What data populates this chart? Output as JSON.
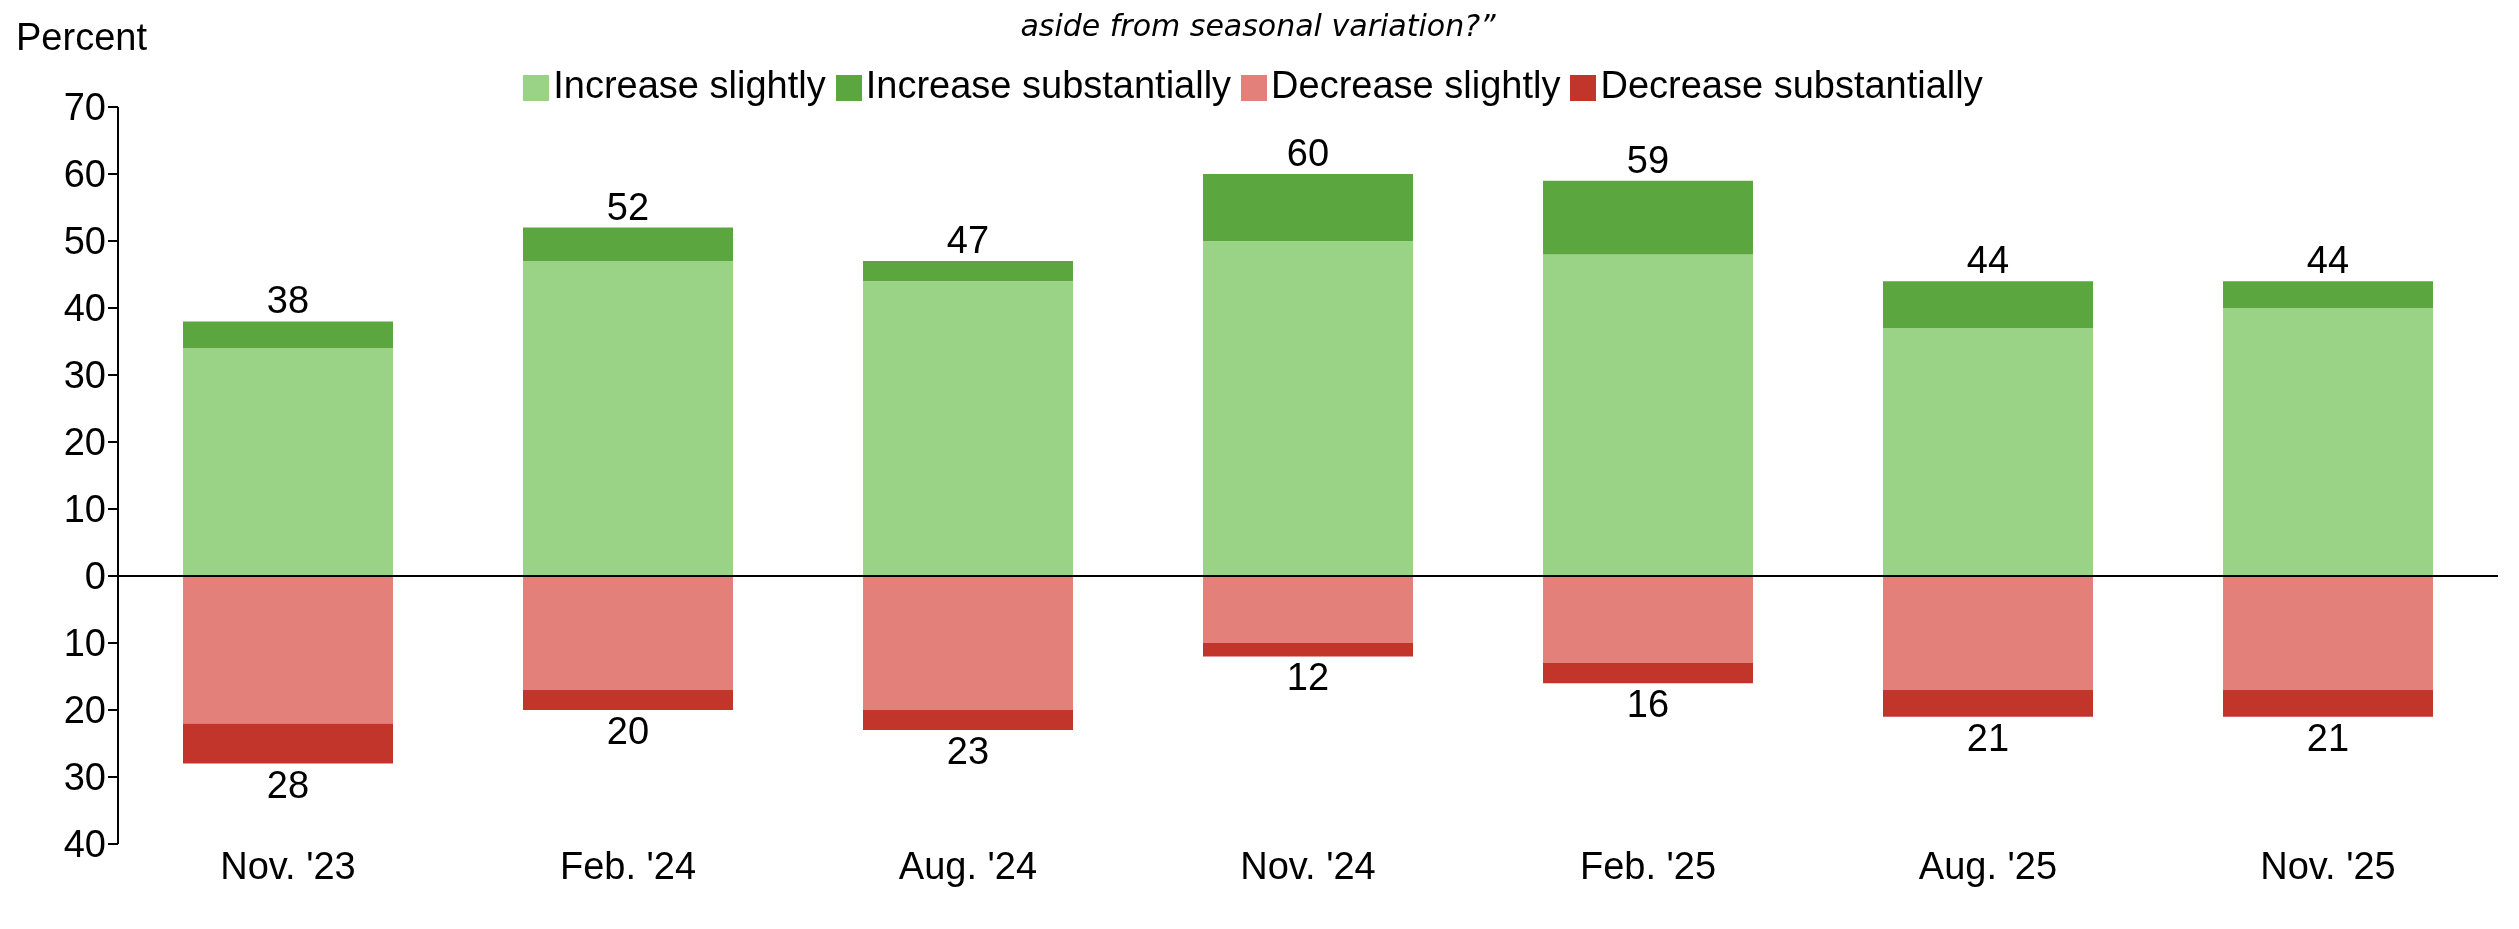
{
  "chart_data": {
    "type": "bar",
    "title": "aside from seasonal variation?”",
    "ylabel": "Percent",
    "stacked": true,
    "legend": "top",
    "categories": [
      "Nov. '23",
      "Feb. '24",
      "Aug. '24",
      "Nov. '24",
      "Feb. '25",
      "Aug. '25",
      "Nov. '25"
    ],
    "series": [
      {
        "name": "Increase slightly",
        "color": "#9ad386",
        "values": [
          34,
          47,
          44,
          50,
          48,
          37,
          40
        ]
      },
      {
        "name": "Increase substantially",
        "color": "#5ba63f",
        "values": [
          4,
          5,
          3,
          10,
          11,
          7,
          4
        ]
      },
      {
        "name": "Decrease slightly",
        "color": "#e3807a",
        "values": [
          -22,
          -17,
          -20,
          -10,
          -13,
          -17,
          -17
        ]
      },
      {
        "name": "Decrease substantially",
        "color": "#c2352b",
        "values": [
          -6,
          -3,
          -3,
          -2,
          -3,
          -4,
          -4
        ]
      }
    ],
    "totals": [
      [
        "38",
        "28"
      ],
      [
        "52",
        "20"
      ],
      [
        "47",
        "23"
      ],
      [
        "60",
        "12"
      ],
      [
        "59",
        "16"
      ],
      [
        "44",
        "21"
      ],
      [
        "44",
        "21"
      ]
    ],
    "ylim": [
      -40,
      70
    ],
    "yticks": [
      {
        "value": -40,
        "label": "40"
      },
      {
        "value": -30,
        "label": "30"
      },
      {
        "value": -20,
        "label": "20"
      },
      {
        "value": -10,
        "label": "10"
      },
      0,
      10,
      20,
      30,
      40,
      50,
      60,
      70
    ]
  }
}
